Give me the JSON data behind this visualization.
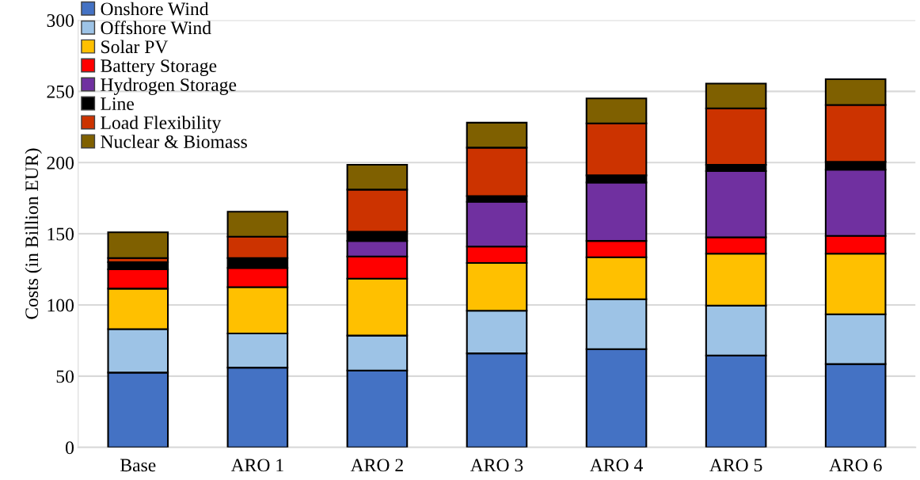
{
  "chart_data": {
    "type": "bar",
    "stacked": true,
    "ylabel": "Costs (in Billion EUR)",
    "categories": [
      "Base",
      "ARO 1",
      "ARO 2",
      "ARO 3",
      "ARO 4",
      "ARO 5",
      "ARO 6"
    ],
    "series": [
      {
        "name": "Onshore Wind",
        "color": "#4472c4",
        "values": [
          52.5,
          56,
          54,
          66,
          69,
          64.5,
          58.5
        ]
      },
      {
        "name": "Offshore Wind",
        "color": "#9dc3e6",
        "values": [
          30.5,
          24,
          24.5,
          30,
          35,
          35,
          35
        ]
      },
      {
        "name": "Solar PV",
        "color": "#ffc000",
        "values": [
          28.5,
          32.5,
          40,
          33.5,
          29.5,
          36.5,
          42.5
        ]
      },
      {
        "name": "Battery Storage",
        "color": "#ff0000",
        "values": [
          13.5,
          13.5,
          15.5,
          11.5,
          11.5,
          11.5,
          12.5
        ]
      },
      {
        "name": "Hydrogen Storage",
        "color": "#7030a0",
        "values": [
          0,
          0,
          11,
          31.5,
          41,
          46.5,
          46.5
        ]
      },
      {
        "name": "Line",
        "color": "#000000",
        "values": [
          5,
          7,
          6.5,
          4,
          5,
          4.5,
          5.5
        ]
      },
      {
        "name": "Load Flexibility",
        "color": "#cc3300",
        "values": [
          3,
          15,
          29.5,
          34,
          36.5,
          39.5,
          40
        ]
      },
      {
        "name": "Nuclear & Biomass",
        "color": "#7f6000",
        "values": [
          18,
          17.5,
          17.5,
          17.5,
          17.5,
          17.5,
          18
        ]
      }
    ],
    "ylim": [
      0,
      300
    ],
    "yticks": [
      0,
      50,
      100,
      150,
      200,
      250,
      300
    ],
    "grid": "y",
    "legend": "top left"
  }
}
